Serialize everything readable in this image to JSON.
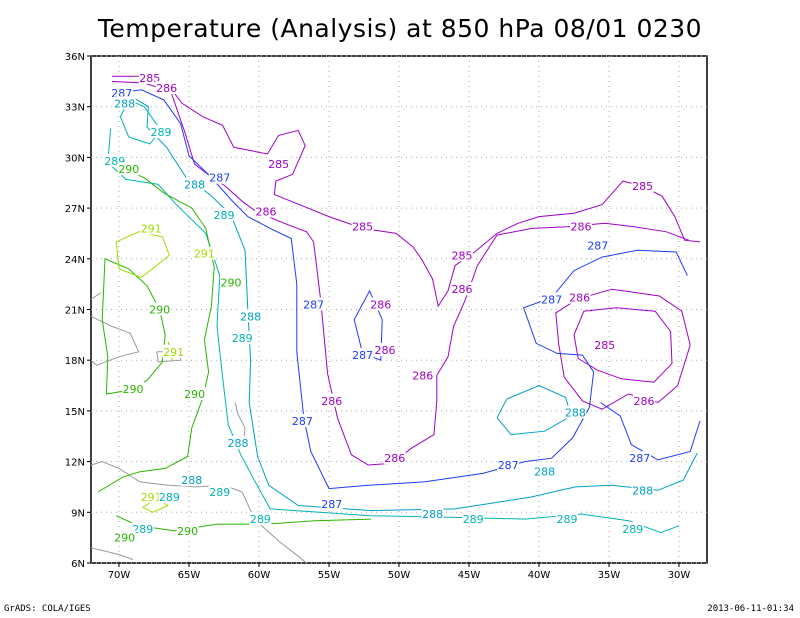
{
  "title": "Temperature (Analysis) at 850 hPa 08/01 0230",
  "credit": "GrADS: COLA/IGES",
  "timestamp": "2013-06-11-01:34",
  "map": {
    "lon_range": [
      -72,
      -28
    ],
    "lat_range": [
      6,
      36
    ],
    "lon_ticks": [
      "70W",
      "65W",
      "60W",
      "55W",
      "50W",
      "45W",
      "40W",
      "35W",
      "30W"
    ],
    "lat_ticks": [
      "36N",
      "33N",
      "30N",
      "27N",
      "24N",
      "21N",
      "18N",
      "15N",
      "12N",
      "9N",
      "6N"
    ],
    "grid": "dotted"
  },
  "contour_colors": {
    "285": "#a000c8",
    "286": "#a000c8",
    "287": "#1e3cff",
    "288": "#00a0c8",
    "289": "#00b4b4",
    "290": "#2ab400",
    "291": "#a0dc00"
  },
  "contour_labels": [
    {
      "text": "285",
      "lon": -67.8,
      "lat": 34.7,
      "level": "285"
    },
    {
      "text": "286",
      "lon": -66.6,
      "lat": 34.1,
      "level": "286"
    },
    {
      "text": "287",
      "lon": -69.8,
      "lat": 33.8,
      "level": "287"
    },
    {
      "text": "288",
      "lon": -69.6,
      "lat": 33.2,
      "level": "288"
    },
    {
      "text": "289",
      "lon": -67.0,
      "lat": 31.5,
      "level": "289"
    },
    {
      "text": "289",
      "lon": -70.3,
      "lat": 29.8,
      "level": "289"
    },
    {
      "text": "290",
      "lon": -69.3,
      "lat": 29.3,
      "level": "290"
    },
    {
      "text": "288",
      "lon": -64.6,
      "lat": 28.4,
      "level": "288"
    },
    {
      "text": "287",
      "lon": -62.8,
      "lat": 28.8,
      "level": "287"
    },
    {
      "text": "285",
      "lon": -58.6,
      "lat": 29.6,
      "level": "285"
    },
    {
      "text": "286",
      "lon": -59.5,
      "lat": 26.8,
      "level": "286"
    },
    {
      "text": "289",
      "lon": -62.5,
      "lat": 26.6,
      "level": "289"
    },
    {
      "text": "291",
      "lon": -67.7,
      "lat": 25.8,
      "level": "291"
    },
    {
      "text": "285",
      "lon": -52.6,
      "lat": 25.9,
      "level": "285"
    },
    {
      "text": "285",
      "lon": -45.5,
      "lat": 24.2,
      "level": "285"
    },
    {
      "text": "285",
      "lon": -32.6,
      "lat": 28.3,
      "level": "285"
    },
    {
      "text": "286",
      "lon": -37.0,
      "lat": 25.9,
      "level": "286"
    },
    {
      "text": "287",
      "lon": -35.8,
      "lat": 24.8,
      "level": "287"
    },
    {
      "text": "291",
      "lon": -63.9,
      "lat": 24.3,
      "level": "291"
    },
    {
      "text": "290",
      "lon": -62.0,
      "lat": 22.6,
      "level": "290"
    },
    {
      "text": "286",
      "lon": -45.5,
      "lat": 22.2,
      "level": "286"
    },
    {
      "text": "287",
      "lon": -39.1,
      "lat": 21.6,
      "level": "287"
    },
    {
      "text": "286",
      "lon": -37.1,
      "lat": 21.7,
      "level": "286"
    },
    {
      "text": "287",
      "lon": -56.1,
      "lat": 21.3,
      "level": "287"
    },
    {
      "text": "286",
      "lon": -51.3,
      "lat": 21.3,
      "level": "286"
    },
    {
      "text": "290",
      "lon": -67.1,
      "lat": 21.0,
      "level": "290"
    },
    {
      "text": "288",
      "lon": -60.6,
      "lat": 20.6,
      "level": "288"
    },
    {
      "text": "289",
      "lon": -61.2,
      "lat": 19.3,
      "level": "289"
    },
    {
      "text": "286",
      "lon": -51.0,
      "lat": 18.6,
      "level": "286"
    },
    {
      "text": "287",
      "lon": -52.6,
      "lat": 18.3,
      "level": "287"
    },
    {
      "text": "291",
      "lon": -66.1,
      "lat": 18.5,
      "level": "291"
    },
    {
      "text": "285",
      "lon": -35.3,
      "lat": 18.9,
      "level": "285"
    },
    {
      "text": "286",
      "lon": -48.3,
      "lat": 17.1,
      "level": "286"
    },
    {
      "text": "290",
      "lon": -69.0,
      "lat": 16.3,
      "level": "290"
    },
    {
      "text": "290",
      "lon": -64.6,
      "lat": 16.0,
      "level": "290"
    },
    {
      "text": "286",
      "lon": -54.8,
      "lat": 15.6,
      "level": "286"
    },
    {
      "text": "286",
      "lon": -32.5,
      "lat": 15.6,
      "level": "286"
    },
    {
      "text": "287",
      "lon": -56.9,
      "lat": 14.4,
      "level": "287"
    },
    {
      "text": "288",
      "lon": -37.4,
      "lat": 14.9,
      "level": "288"
    },
    {
      "text": "288",
      "lon": -61.5,
      "lat": 13.1,
      "level": "288"
    },
    {
      "text": "286",
      "lon": -50.3,
      "lat": 12.2,
      "level": "286"
    },
    {
      "text": "287",
      "lon": -42.2,
      "lat": 11.8,
      "level": "287"
    },
    {
      "text": "288",
      "lon": -39.6,
      "lat": 11.4,
      "level": "288"
    },
    {
      "text": "287",
      "lon": -32.8,
      "lat": 12.2,
      "level": "287"
    },
    {
      "text": "288",
      "lon": -64.8,
      "lat": 10.9,
      "level": "288"
    },
    {
      "text": "289",
      "lon": -62.8,
      "lat": 10.2,
      "level": "289"
    },
    {
      "text": "291",
      "lon": -67.7,
      "lat": 9.9,
      "level": "291"
    },
    {
      "text": "289",
      "lon": -66.4,
      "lat": 9.9,
      "level": "289"
    },
    {
      "text": "288",
      "lon": -32.6,
      "lat": 10.3,
      "level": "288"
    },
    {
      "text": "287",
      "lon": -54.8,
      "lat": 9.5,
      "level": "287"
    },
    {
      "text": "288",
      "lon": -47.6,
      "lat": 8.9,
      "level": "288"
    },
    {
      "text": "289",
      "lon": -59.9,
      "lat": 8.6,
      "level": "289"
    },
    {
      "text": "289",
      "lon": -44.7,
      "lat": 8.6,
      "level": "289"
    },
    {
      "text": "289",
      "lon": -38.0,
      "lat": 8.6,
      "level": "289"
    },
    {
      "text": "289",
      "lon": -68.3,
      "lat": 8.0,
      "level": "289"
    },
    {
      "text": "290",
      "lon": -65.1,
      "lat": 7.9,
      "level": "290"
    },
    {
      "text": "290",
      "lon": -69.6,
      "lat": 7.5,
      "level": "290"
    },
    {
      "text": "289",
      "lon": -33.3,
      "lat": 8.0,
      "level": "289"
    }
  ]
}
